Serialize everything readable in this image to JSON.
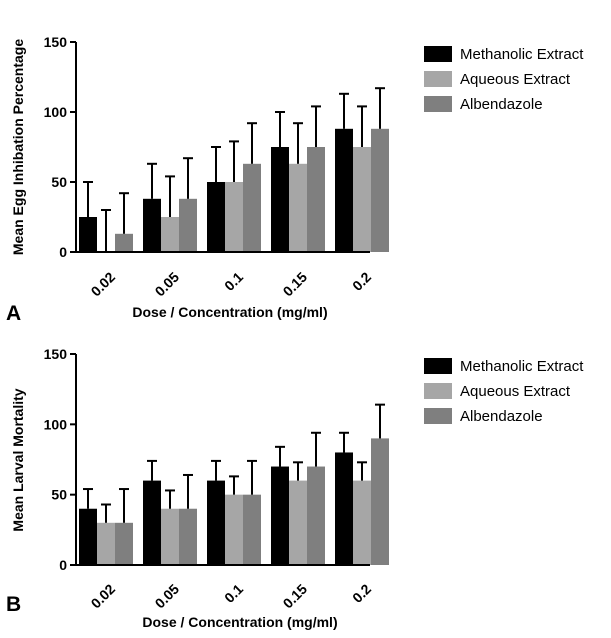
{
  "chart_data": [
    {
      "panel": "A",
      "type": "bar",
      "xlabel": "Dose / Concentration (mg/ml)",
      "ylabel": "Mean Egg Inhibation Percentage",
      "ylim": [
        0,
        150
      ],
      "yticks": [
        0,
        50,
        100,
        150
      ],
      "categories": [
        "0.02",
        "0.05",
        "0.1",
        "0.15",
        "0.2"
      ],
      "legend_position": "top-right",
      "series": [
        {
          "name": "Methanolic Extract",
          "color": "#000000",
          "values": [
            25,
            38,
            50,
            75,
            88
          ],
          "errors": [
            25,
            25,
            25,
            25,
            25
          ]
        },
        {
          "name": "Aqueous Extract",
          "color": "#a6a6a6",
          "values": [
            0,
            25,
            50,
            63,
            75
          ],
          "errors": [
            30,
            29,
            29,
            29,
            29
          ]
        },
        {
          "name": "Albendazole",
          "color": "#7f7f7f",
          "values": [
            13,
            38,
            63,
            75,
            88
          ],
          "errors": [
            29,
            29,
            29,
            29,
            29
          ]
        }
      ]
    },
    {
      "panel": "B",
      "type": "bar",
      "xlabel": "Dose / Concentration (mg/ml)",
      "ylabel": "Mean Larval Mortality",
      "ylim": [
        0,
        150
      ],
      "yticks": [
        0,
        50,
        100,
        150
      ],
      "categories": [
        "0.02",
        "0.05",
        "0.1",
        "0.15",
        "0.2"
      ],
      "legend_position": "top-right",
      "series": [
        {
          "name": "Methanolic Extract",
          "color": "#000000",
          "values": [
            40,
            60,
            60,
            70,
            80
          ],
          "errors": [
            14,
            14,
            14,
            14,
            14
          ]
        },
        {
          "name": "Aqueous Extract",
          "color": "#a6a6a6",
          "values": [
            30,
            40,
            50,
            60,
            60
          ],
          "errors": [
            13,
            13,
            13,
            13,
            13
          ]
        },
        {
          "name": "Albendazole",
          "color": "#7f7f7f",
          "values": [
            30,
            40,
            50,
            70,
            90
          ],
          "errors": [
            24,
            24,
            24,
            24,
            24
          ]
        }
      ]
    }
  ]
}
